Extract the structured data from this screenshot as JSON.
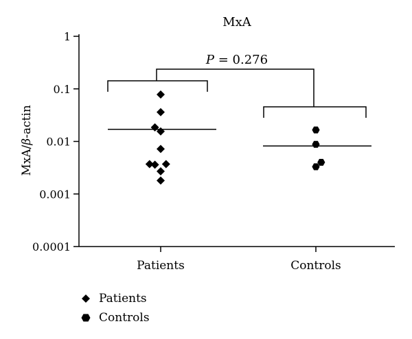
{
  "chart_data": {
    "type": "scatter",
    "title": "MxA",
    "ylabel": "MxA/β-actin",
    "yscale": "log",
    "ylim": [
      0.0001,
      1
    ],
    "yticks": [
      "0.0001",
      "0.001",
      "0.01",
      "0.1",
      "1"
    ],
    "categories": [
      "Patients",
      "Controls"
    ],
    "series": [
      {
        "name": "Patients",
        "marker": "diamond",
        "values": [
          0.078,
          0.036,
          0.0185,
          0.0155,
          0.0072,
          0.0037,
          0.0036,
          0.0037,
          0.0027,
          0.0018
        ],
        "jitter": [
          0,
          0,
          -0.14,
          0,
          0,
          -0.27,
          -0.14,
          0.13,
          0,
          0
        ],
        "mean": 0.017
      },
      {
        "name": "Controls",
        "marker": "hexagon",
        "values": [
          0.0165,
          0.0088,
          0.004,
          0.0033
        ],
        "jitter": [
          0,
          0,
          0.13,
          0
        ],
        "mean": 0.0082
      }
    ],
    "annotation": {
      "text": "P = 0.276",
      "italic_part": "P",
      "rest": " = 0.276"
    },
    "legend": {
      "position": "bottom-left",
      "entries": [
        {
          "label": "Patients",
          "marker": "diamond"
        },
        {
          "label": "Controls",
          "marker": "hexagon"
        }
      ]
    },
    "grid": false
  }
}
